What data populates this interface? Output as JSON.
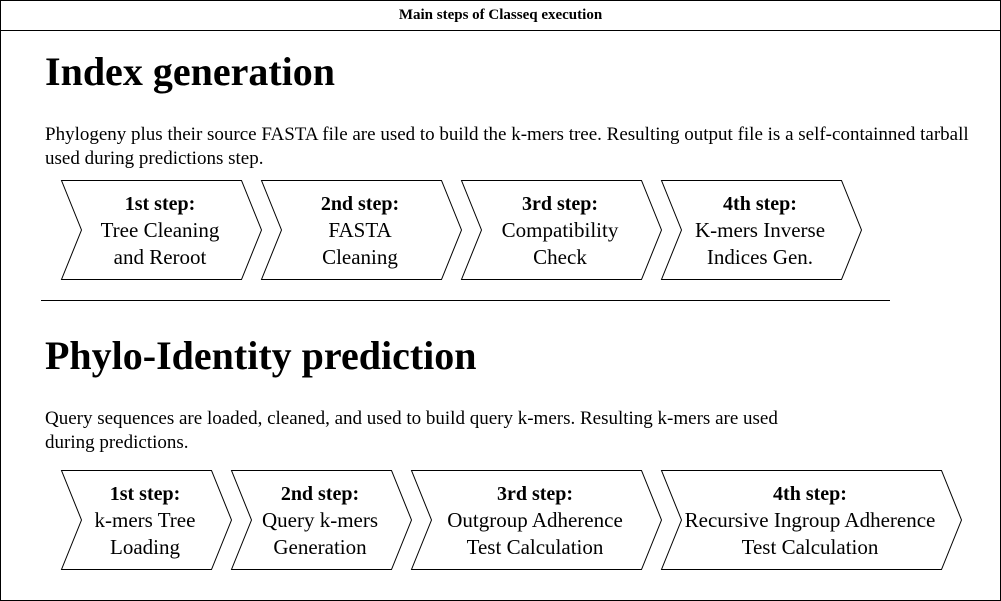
{
  "diagram": {
    "title": "Main steps of Classeq execution",
    "sections": [
      {
        "heading": "Index generation",
        "description": "Phylogeny plus their source FASTA file are used to build the k-mers tree. Resulting output file is a self-containned tarball used during predictions step.",
        "steps": [
          {
            "label": "1st step:",
            "text": "Tree Cleaning and Reroot"
          },
          {
            "label": "2nd step:",
            "text": "FASTA Cleaning"
          },
          {
            "label": "3rd step:",
            "text": "Compatibility Check"
          },
          {
            "label": "4th step:",
            "text": "K-mers Inverse Indices Gen."
          }
        ]
      },
      {
        "heading": "Phylo-Identity prediction",
        "description": "Query sequences are loaded, cleaned, and used to build query k-mers. Resulting k-mers are used during predictions.",
        "steps": [
          {
            "label": "1st step:",
            "text": "k-mers Tree Loading"
          },
          {
            "label": "2nd step:",
            "text": "Query k-mers Generation"
          },
          {
            "label": "3rd step:",
            "text": "Outgroup Adherence Test Calculation"
          },
          {
            "label": "4th step:",
            "text": "Recursive Ingroup Adherence Test Calculation"
          }
        ]
      }
    ]
  }
}
